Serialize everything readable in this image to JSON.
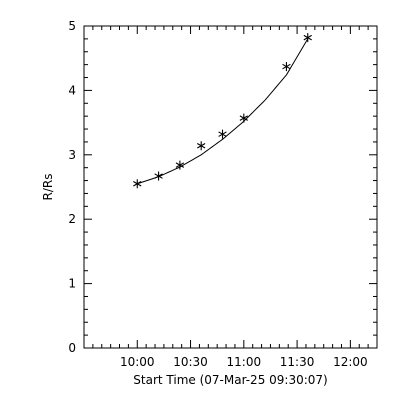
{
  "chart_data": {
    "type": "scatter",
    "xlabel": "Start Time (07-Mar-25 09:30:07)",
    "ylabel": "R/Rs",
    "xlim": [
      "09:30",
      "12:15"
    ],
    "ylim": [
      0,
      5
    ],
    "x_ticks": [
      "10:00",
      "10:30",
      "11:00",
      "11:30",
      "12:00"
    ],
    "y_ticks": [
      "0",
      "1",
      "2",
      "3",
      "4",
      "5"
    ],
    "grid": false,
    "series": [
      {
        "marker": "asterisk",
        "x": [
          "10:00",
          "10:12",
          "10:24",
          "10:36",
          "10:48",
          "11:00",
          "11:24",
          "11:36"
        ],
        "y": [
          2.55,
          2.67,
          2.84,
          3.14,
          3.32,
          3.57,
          4.37,
          4.82
        ]
      }
    ],
    "fit_line": {
      "x": [
        "10:00",
        "10:12",
        "10:24",
        "10:36",
        "10:48",
        "11:00",
        "11:12",
        "11:24",
        "11:36"
      ],
      "y": [
        2.55,
        2.66,
        2.81,
        3.0,
        3.24,
        3.52,
        3.85,
        4.24,
        4.8
      ]
    }
  }
}
